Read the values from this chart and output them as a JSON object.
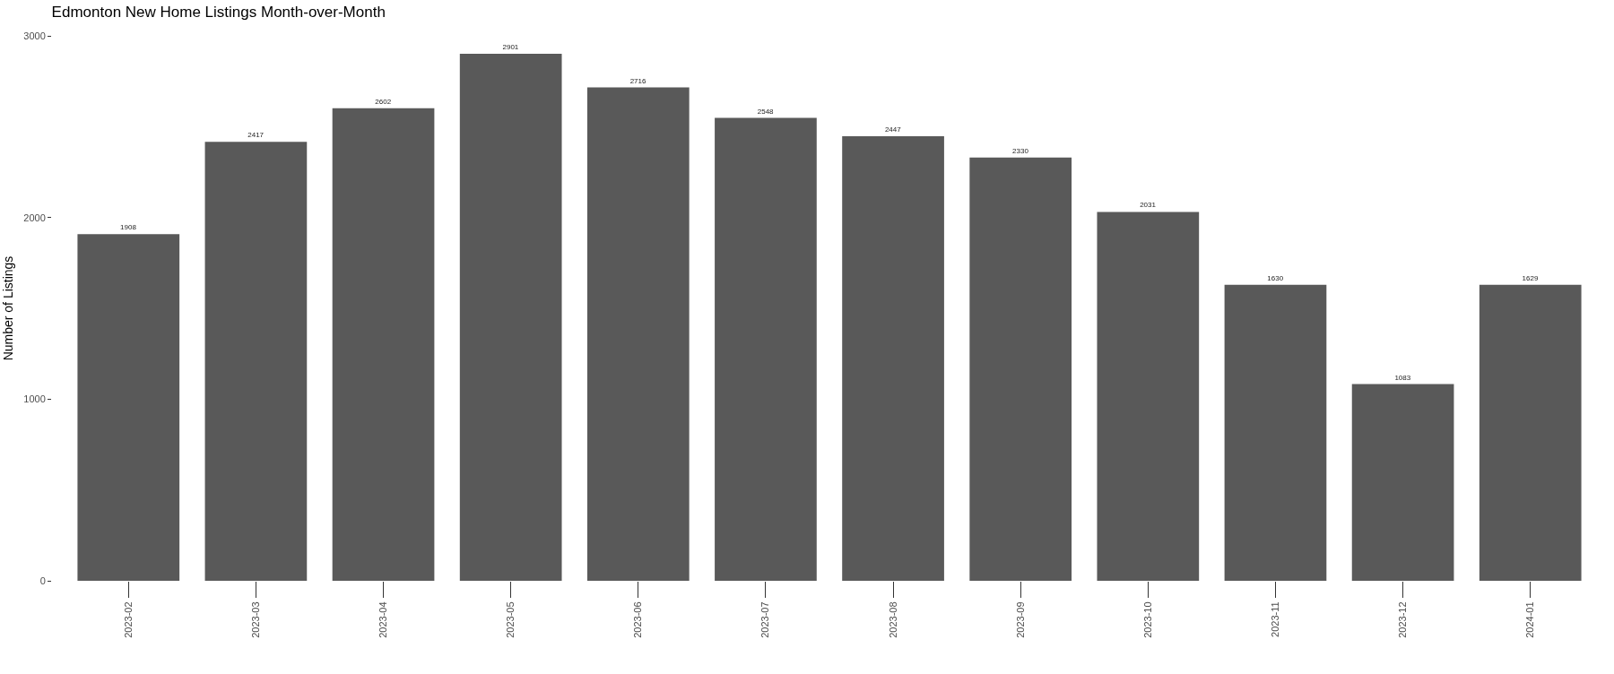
{
  "chart_data": {
    "type": "bar",
    "title": "Edmonton New Home Listings Month-over-Month",
    "ylabel": "Number of Listings",
    "categories": [
      "2023-02",
      "2023-03",
      "2023-04",
      "2023-05",
      "2023-06",
      "2023-07",
      "2023-08",
      "2023-09",
      "2023-10",
      "2023-11",
      "2023-12",
      "2024-01"
    ],
    "values": [
      1908,
      2417,
      2602,
      2901,
      2716,
      2548,
      2447,
      2330,
      2031,
      1630,
      1083,
      1629
    ],
    "color": "#595959",
    "ylim": [
      0,
      3000
    ],
    "yticks": [
      0,
      1000,
      2000,
      3000
    ],
    "data_labels": true
  }
}
